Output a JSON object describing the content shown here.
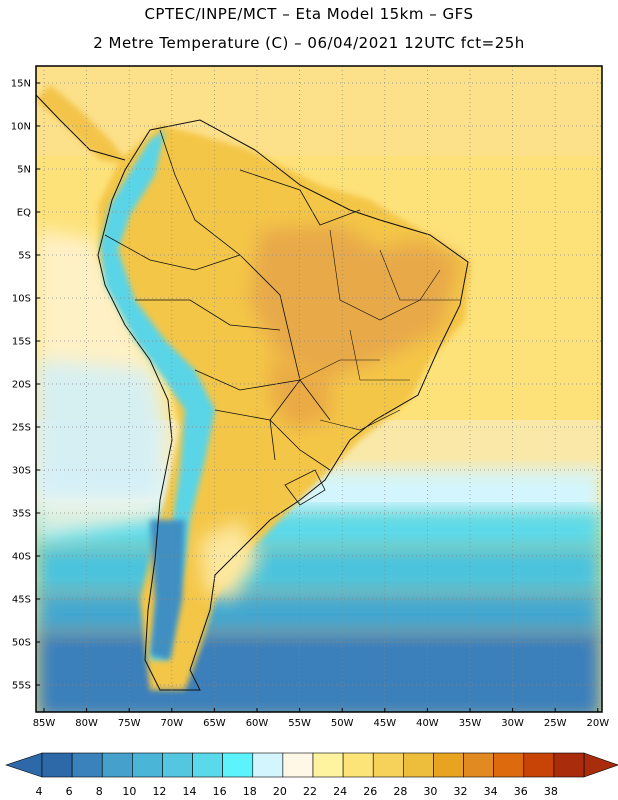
{
  "header": {
    "title_line1": "CPTEC/INPE/MCT –  Eta Model 15km – GFS",
    "title_line2": "2 Metre Temperature (C) – 06/04/2021 12UTC fct=25h"
  },
  "map": {
    "lat_labels": [
      "15N",
      "10N",
      "5N",
      "EQ",
      "5S",
      "10S",
      "15S",
      "20S",
      "25S",
      "30S",
      "35S",
      "40S",
      "45S",
      "50S",
      "55S"
    ],
    "lon_labels": [
      "85W",
      "80W",
      "75W",
      "70W",
      "65W",
      "60W",
      "55W",
      "50W",
      "45W",
      "40W",
      "35W",
      "30W",
      "25W",
      "20W"
    ]
  },
  "colorbar": {
    "labels": [
      "4",
      "6",
      "8",
      "10",
      "12",
      "14",
      "16",
      "18",
      "20",
      "22",
      "24",
      "26",
      "28",
      "30",
      "32",
      "34",
      "36",
      "38"
    ],
    "colors": [
      "#2d68a9",
      "#3a82bb",
      "#45a0cc",
      "#4bb5d8",
      "#55c6e0",
      "#5ad9ea",
      "#5df3fd",
      "#d3f6fe",
      "#fff8e6",
      "#fef39e",
      "#fde479",
      "#f6d25a",
      "#edbe3b",
      "#e8a321",
      "#e28a22",
      "#dd6b0d",
      "#c74406",
      "#a92c0d"
    ]
  }
}
